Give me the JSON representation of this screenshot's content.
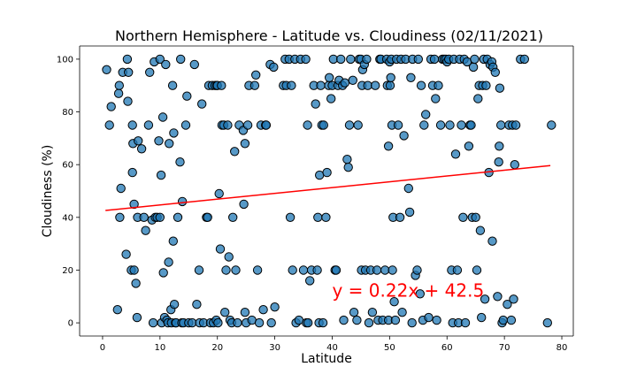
{
  "chart_data": {
    "type": "scatter",
    "title": "Northern Hemisphere - Latitude vs. Cloudiness (02/11/2021)",
    "xlabel": "Latitude",
    "ylabel": "Cloudiness (%)",
    "xlim": [
      -4,
      82
    ],
    "ylim": [
      -5,
      105
    ],
    "xticks": [
      0,
      10,
      20,
      30,
      40,
      50,
      60,
      70,
      80
    ],
    "yticks": [
      0,
      20,
      40,
      60,
      80,
      100
    ],
    "grid": false,
    "point_color": "#1f77b4",
    "regression": {
      "slope": 0.22,
      "intercept": 42.5,
      "x_range": [
        0.5,
        78
      ],
      "color": "#ff0000",
      "equation": "y = 0.22x + 42.5",
      "equation_at": [
        40,
        10
      ]
    },
    "points": [
      [
        0.7,
        96
      ],
      [
        1.2,
        75
      ],
      [
        1.5,
        82
      ],
      [
        2.6,
        5
      ],
      [
        2.8,
        87
      ],
      [
        2.9,
        90
      ],
      [
        3,
        40
      ],
      [
        3.2,
        51
      ],
      [
        3.5,
        95
      ],
      [
        4.1,
        26
      ],
      [
        4.3,
        100
      ],
      [
        4.4,
        84
      ],
      [
        4.5,
        95
      ],
      [
        5,
        20
      ],
      [
        5.2,
        57
      ],
      [
        5.2,
        75
      ],
      [
        5.3,
        68
      ],
      [
        5.5,
        20
      ],
      [
        5.5,
        45
      ],
      [
        5.8,
        15
      ],
      [
        6,
        2
      ],
      [
        6.1,
        40
      ],
      [
        6.2,
        69
      ],
      [
        6.8,
        66
      ],
      [
        7.2,
        40
      ],
      [
        7.5,
        35
      ],
      [
        8,
        75
      ],
      [
        8.2,
        95
      ],
      [
        8.6,
        39
      ],
      [
        8.8,
        0
      ],
      [
        9,
        99
      ],
      [
        9.2,
        40
      ],
      [
        9.5,
        40
      ],
      [
        9.8,
        69
      ],
      [
        10,
        40
      ],
      [
        10,
        100
      ],
      [
        10.2,
        56
      ],
      [
        10.3,
        0
      ],
      [
        10.5,
        78
      ],
      [
        10.6,
        19
      ],
      [
        10.8,
        2
      ],
      [
        11,
        98
      ],
      [
        11.2,
        1
      ],
      [
        11.4,
        0
      ],
      [
        11.5,
        23
      ],
      [
        11.6,
        68
      ],
      [
        11.9,
        5
      ],
      [
        12,
        0
      ],
      [
        12.2,
        90
      ],
      [
        12.3,
        31
      ],
      [
        12.4,
        72
      ],
      [
        12.5,
        7
      ],
      [
        12.7,
        0
      ],
      [
        12.8,
        0
      ],
      [
        13.1,
        40
      ],
      [
        13.5,
        61
      ],
      [
        13.6,
        100
      ],
      [
        13.8,
        0
      ],
      [
        13.9,
        46
      ],
      [
        14.1,
        0
      ],
      [
        14.5,
        75
      ],
      [
        14.7,
        86
      ],
      [
        15,
        0
      ],
      [
        15.6,
        0
      ],
      [
        16,
        98
      ],
      [
        16.4,
        7
      ],
      [
        16.8,
        20
      ],
      [
        16.9,
        0
      ],
      [
        17.3,
        83
      ],
      [
        17.6,
        0
      ],
      [
        18.1,
        40
      ],
      [
        18.3,
        40
      ],
      [
        18.5,
        90
      ],
      [
        18.8,
        0
      ],
      [
        19.1,
        90
      ],
      [
        19.3,
        0
      ],
      [
        19.6,
        90
      ],
      [
        19.8,
        1
      ],
      [
        19.9,
        90
      ],
      [
        20,
        90
      ],
      [
        20.1,
        0
      ],
      [
        20.3,
        49
      ],
      [
        20.5,
        28
      ],
      [
        20.7,
        90
      ],
      [
        20.8,
        75
      ],
      [
        21.1,
        75
      ],
      [
        21.3,
        4
      ],
      [
        21.5,
        20
      ],
      [
        21.8,
        75
      ],
      [
        22,
        25
      ],
      [
        22.2,
        1
      ],
      [
        22.5,
        0
      ],
      [
        22.7,
        40
      ],
      [
        23,
        65
      ],
      [
        23.2,
        20
      ],
      [
        23.5,
        0
      ],
      [
        23.8,
        75
      ],
      [
        24.5,
        73
      ],
      [
        24.6,
        45
      ],
      [
        24.8,
        68
      ],
      [
        24.8,
        4
      ],
      [
        25,
        0
      ],
      [
        25.3,
        75
      ],
      [
        25.5,
        90
      ],
      [
        26,
        1
      ],
      [
        26.5,
        90
      ],
      [
        26.7,
        94
      ],
      [
        27,
        20
      ],
      [
        27.3,
        0
      ],
      [
        27.6,
        75
      ],
      [
        28,
        5
      ],
      [
        28.4,
        75
      ],
      [
        28.5,
        75
      ],
      [
        29.2,
        98
      ],
      [
        29.4,
        0
      ],
      [
        29.8,
        97
      ],
      [
        30,
        6
      ],
      [
        31.5,
        90
      ],
      [
        31.8,
        100
      ],
      [
        32,
        90
      ],
      [
        32.5,
        100
      ],
      [
        32.7,
        40
      ],
      [
        32.9,
        90
      ],
      [
        33.1,
        20
      ],
      [
        33.5,
        100
      ],
      [
        33.7,
        0
      ],
      [
        34.2,
        1
      ],
      [
        34.5,
        100
      ],
      [
        35,
        20
      ],
      [
        35.4,
        100
      ],
      [
        35.5,
        0
      ],
      [
        35.7,
        75
      ],
      [
        35.8,
        0
      ],
      [
        36.1,
        16
      ],
      [
        36.4,
        20
      ],
      [
        36.8,
        90
      ],
      [
        37.1,
        83
      ],
      [
        37.4,
        20
      ],
      [
        37.5,
        40
      ],
      [
        37.7,
        0
      ],
      [
        37.8,
        56
      ],
      [
        38,
        90
      ],
      [
        38.2,
        75
      ],
      [
        38.4,
        0
      ],
      [
        38.5,
        75
      ],
      [
        38.9,
        40
      ],
      [
        39.1,
        57
      ],
      [
        39.4,
        90
      ],
      [
        39.5,
        93
      ],
      [
        39.8,
        85
      ],
      [
        40,
        90
      ],
      [
        40.2,
        100
      ],
      [
        40.5,
        20
      ],
      [
        40.7,
        20
      ],
      [
        41,
        90
      ],
      [
        41.2,
        92
      ],
      [
        41.5,
        100
      ],
      [
        41.8,
        90
      ],
      [
        42,
        1
      ],
      [
        42.2,
        91
      ],
      [
        42.6,
        62
      ],
      [
        42.8,
        59
      ],
      [
        43,
        75
      ],
      [
        43.2,
        100
      ],
      [
        43.6,
        92
      ],
      [
        43.8,
        4
      ],
      [
        44.3,
        1
      ],
      [
        44.5,
        75
      ],
      [
        44.7,
        100
      ],
      [
        45,
        100
      ],
      [
        45.1,
        20
      ],
      [
        45.2,
        90
      ],
      [
        45.3,
        96
      ],
      [
        45.6,
        98
      ],
      [
        45.8,
        20
      ],
      [
        46,
        100
      ],
      [
        46.2,
        90
      ],
      [
        46.4,
        0
      ],
      [
        46.7,
        20
      ],
      [
        47,
        4
      ],
      [
        47.5,
        90
      ],
      [
        47.8,
        20
      ],
      [
        48,
        1
      ],
      [
        48.3,
        100
      ],
      [
        48.5,
        100
      ],
      [
        48.8,
        1
      ],
      [
        49.2,
        20
      ],
      [
        49.5,
        100
      ],
      [
        49.6,
        90
      ],
      [
        49.8,
        67
      ],
      [
        49.8,
        1
      ],
      [
        50,
        99
      ],
      [
        50.1,
        90
      ],
      [
        50.2,
        93
      ],
      [
        50.3,
        100
      ],
      [
        50.4,
        75
      ],
      [
        50.5,
        20
      ],
      [
        50.6,
        40
      ],
      [
        50.8,
        8
      ],
      [
        51,
        1
      ],
      [
        51.2,
        100
      ],
      [
        51.5,
        75
      ],
      [
        51.8,
        40
      ],
      [
        52,
        100
      ],
      [
        52.2,
        4
      ],
      [
        52.5,
        71
      ],
      [
        52.8,
        100
      ],
      [
        53.3,
        51
      ],
      [
        53.5,
        42
      ],
      [
        53.7,
        93
      ],
      [
        53.9,
        0
      ],
      [
        54,
        100
      ],
      [
        54.5,
        18
      ],
      [
        54.8,
        20
      ],
      [
        55,
        100
      ],
      [
        55.3,
        11
      ],
      [
        55.5,
        90
      ],
      [
        55.8,
        1
      ],
      [
        56,
        75
      ],
      [
        56.3,
        79
      ],
      [
        56.8,
        2
      ],
      [
        57.2,
        100
      ],
      [
        57.5,
        90
      ],
      [
        57.8,
        100
      ],
      [
        58,
        85
      ],
      [
        58.2,
        1
      ],
      [
        58.5,
        90
      ],
      [
        58.9,
        75
      ],
      [
        59.2,
        100
      ],
      [
        59.5,
        100
      ],
      [
        59.8,
        100
      ],
      [
        60,
        99
      ],
      [
        60.3,
        100
      ],
      [
        60.5,
        75
      ],
      [
        60.8,
        20
      ],
      [
        61,
        0
      ],
      [
        61.2,
        100
      ],
      [
        61.5,
        64
      ],
      [
        61.8,
        20
      ],
      [
        62,
        0
      ],
      [
        62.2,
        100
      ],
      [
        62.5,
        75
      ],
      [
        62.8,
        40
      ],
      [
        63,
        100
      ],
      [
        63.2,
        0
      ],
      [
        63.5,
        99
      ],
      [
        63.8,
        67
      ],
      [
        64,
        75
      ],
      [
        64.2,
        75
      ],
      [
        64.4,
        40
      ],
      [
        64.6,
        97
      ],
      [
        64.8,
        100
      ],
      [
        65,
        40
      ],
      [
        65.2,
        20
      ],
      [
        65.4,
        85
      ],
      [
        65.6,
        90
      ],
      [
        65.8,
        35
      ],
      [
        66,
        2
      ],
      [
        66.2,
        90
      ],
      [
        66.4,
        100
      ],
      [
        66.6,
        9
      ],
      [
        66.8,
        90
      ],
      [
        67,
        100
      ],
      [
        67.3,
        57
      ],
      [
        67.5,
        98
      ],
      [
        67.8,
        99
      ],
      [
        67.9,
        31
      ],
      [
        68,
        97
      ],
      [
        68.4,
        95
      ],
      [
        68.8,
        10
      ],
      [
        69,
        61
      ],
      [
        69.1,
        67
      ],
      [
        69.2,
        89
      ],
      [
        69.4,
        75
      ],
      [
        69.6,
        0
      ],
      [
        69.8,
        1
      ],
      [
        70.5,
        7
      ],
      [
        70.8,
        75
      ],
      [
        71.2,
        1
      ],
      [
        71.4,
        75
      ],
      [
        71.6,
        9
      ],
      [
        71.8,
        60
      ],
      [
        72,
        75
      ],
      [
        72.8,
        100
      ],
      [
        73.5,
        100
      ],
      [
        77.5,
        0
      ],
      [
        78.2,
        75
      ]
    ]
  }
}
